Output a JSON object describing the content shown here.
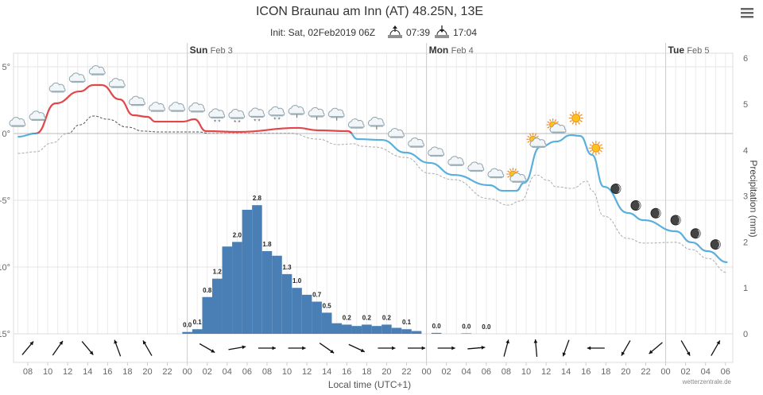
{
  "header": {
    "title": "ICON Braunau am Inn (AT) 48.25N, 13E",
    "init": "Init: Sat, 02Feb2019 06Z",
    "sunrise": "07:39",
    "sunset": "17:04",
    "menu_icon": "hamburger-menu-icon"
  },
  "days": [
    {
      "weekday": "Sun",
      "date": "Feb 3"
    },
    {
      "weekday": "Mon",
      "date": "Feb 4"
    },
    {
      "weekday": "Tue",
      "date": "Feb 5"
    }
  ],
  "credit": "wetterzentrale.de",
  "colors": {
    "temp_above": "#e0464a",
    "temp_below": "#5aafdc",
    "precip": "#4a7fb5",
    "dew_above": "#555555",
    "dew_below": "#aaaaaa"
  },
  "chart_data": {
    "type": "line+bar",
    "xlabel": "Local time (UTC+1)",
    "x_tick_labels": [
      "08",
      "10",
      "12",
      "14",
      "16",
      "18",
      "20",
      "22",
      "00",
      "02",
      "04",
      "06",
      "08",
      "10",
      "12",
      "14",
      "16",
      "18",
      "20",
      "22",
      "00",
      "02",
      "04",
      "06",
      "08",
      "10",
      "12",
      "14",
      "16",
      "18",
      "20",
      "22",
      "00",
      "02",
      "04",
      "06"
    ],
    "y_left": {
      "ticks": [
        "5°",
        "0°",
        "-5°",
        "-10°",
        "-15°"
      ],
      "range": [
        -15,
        6.4
      ]
    },
    "y_right": {
      "label": "Precipitation (mm)",
      "ticks": [
        "0",
        "1",
        "2",
        "3",
        "4",
        "5",
        "6"
      ],
      "range": [
        0,
        6
      ]
    },
    "grid": true,
    "temperature": [
      [
        "2019-02-02T07:00",
        -0.24
      ],
      [
        "2019-02-02T08:48",
        0.0
      ],
      [
        "2019-02-02T10:48",
        2.26
      ],
      [
        "2019-02-02T13:12",
        3.15
      ],
      [
        "2019-02-02T14:36",
        3.63
      ],
      [
        "2019-02-02T15:24",
        3.63
      ],
      [
        "2019-02-02T17:12",
        2.56
      ],
      [
        "2019-02-02T18:36",
        1.37
      ],
      [
        "2019-02-02T20:00",
        1.25
      ],
      [
        "2019-02-02T20:48",
        0.89
      ],
      [
        "2019-02-02T23:36",
        0.89
      ],
      [
        "2019-02-03T00:42",
        1.07
      ],
      [
        "2019-02-03T01:54",
        0.18
      ],
      [
        "2019-02-03T05:06",
        0.12
      ],
      [
        "2019-02-03T11:06",
        0.42
      ],
      [
        "2019-02-03T13:06",
        0.24
      ],
      [
        "2019-02-03T16:06",
        0.18
      ],
      [
        "2019-02-03T17:06",
        -0.42
      ],
      [
        "2019-02-03T19:30",
        -0.48
      ],
      [
        "2019-02-03T21:54",
        -1.43
      ],
      [
        "2019-02-04T00:18",
        -2.2
      ],
      [
        "2019-02-04T02:42",
        -3.1
      ],
      [
        "2019-02-04T06:18",
        -3.87
      ],
      [
        "2019-02-04T07:42",
        -4.29
      ],
      [
        "2019-02-04T09:00",
        -4.29
      ],
      [
        "2019-02-04T09:48",
        -3.69
      ],
      [
        "2019-02-04T11:24",
        -1.01
      ],
      [
        "2019-02-04T13:00",
        -0.6
      ],
      [
        "2019-02-04T14:30",
        -0.12
      ],
      [
        "2019-02-04T15:24",
        -0.18
      ],
      [
        "2019-02-04T16:36",
        -1.6
      ],
      [
        "2019-02-04T17:48",
        -3.99
      ],
      [
        "2019-02-04T20:12",
        -5.95
      ],
      [
        "2019-02-04T21:48",
        -6.49
      ],
      [
        "2019-02-05T01:00",
        -7.32
      ],
      [
        "2019-02-05T02:36",
        -8.15
      ],
      [
        "2019-02-05T04:12",
        -8.81
      ],
      [
        "2019-02-05T06:12",
        -9.64
      ]
    ],
    "dew_point": [
      [
        "2019-02-02T07:00",
        -1.49
      ],
      [
        "2019-02-02T08:48",
        -1.37
      ],
      [
        "2019-02-02T10:24",
        -0.71
      ],
      [
        "2019-02-02T12:00",
        0.0
      ],
      [
        "2019-02-02T13:12",
        0.65
      ],
      [
        "2019-02-02T14:36",
        1.31
      ],
      [
        "2019-02-02T16:00",
        1.07
      ],
      [
        "2019-02-02T18:00",
        0.48
      ],
      [
        "2019-02-02T19:36",
        0.18
      ],
      [
        "2019-02-02T21:12",
        0.12
      ],
      [
        "2019-02-03T01:06",
        0.12
      ],
      [
        "2019-02-03T02:18",
        0.0
      ],
      [
        "2019-02-03T10:18",
        0.0
      ],
      [
        "2019-02-03T13:06",
        -0.42
      ],
      [
        "2019-02-03T15:06",
        -0.83
      ],
      [
        "2019-02-03T16:42",
        -0.77
      ],
      [
        "2019-02-03T17:30",
        -0.95
      ],
      [
        "2019-02-03T18:42",
        -1.01
      ],
      [
        "2019-02-03T21:54",
        -1.79
      ],
      [
        "2019-02-04T00:18",
        -2.98
      ],
      [
        "2019-02-04T02:42",
        -3.45
      ],
      [
        "2019-02-04T06:18",
        -4.88
      ],
      [
        "2019-02-04T08:12",
        -5.36
      ],
      [
        "2019-02-04T09:24",
        -5.06
      ],
      [
        "2019-02-04T11:00",
        -3.1
      ],
      [
        "2019-02-04T12:12",
        -3.51
      ],
      [
        "2019-02-04T13:00",
        -3.99
      ],
      [
        "2019-02-04T14:36",
        -4.11
      ],
      [
        "2019-02-04T16:06",
        -3.57
      ],
      [
        "2019-02-04T16:36",
        -4.29
      ],
      [
        "2019-02-04T17:48",
        -6.19
      ],
      [
        "2019-02-04T20:12",
        -7.86
      ],
      [
        "2019-02-04T21:48",
        -8.21
      ],
      [
        "2019-02-05T01:00",
        -8.15
      ],
      [
        "2019-02-05T02:36",
        -8.69
      ],
      [
        "2019-02-05T04:12",
        -9.35
      ],
      [
        "2019-02-05T06:12",
        -10.42
      ]
    ],
    "precipitation": {
      "start": "2019-02-03T00:00",
      "hourly_mm": [
        0.04,
        0.1,
        0.8,
        1.2,
        1.9,
        2.0,
        2.7,
        2.8,
        1.8,
        1.7,
        1.3,
        1.0,
        0.85,
        0.7,
        0.46,
        0.23,
        0.2,
        0.17,
        0.2,
        0.17,
        0.2,
        0.13,
        0.1,
        0.06,
        0,
        0.02,
        0,
        0,
        0.01,
        0,
        0.0
      ],
      "labels": [
        [
          "2019-02-03T00:00",
          "0.0"
        ],
        [
          "2019-02-03T01:00",
          "0.1"
        ],
        [
          "2019-02-03T02:00",
          "0.8"
        ],
        [
          "2019-02-03T03:00",
          "1.2"
        ],
        [
          "2019-02-03T05:00",
          "2.0"
        ],
        [
          "2019-02-03T07:00",
          "2.8"
        ],
        [
          "2019-02-03T08:00",
          "1.8"
        ],
        [
          "2019-02-03T10:00",
          "1.3"
        ],
        [
          "2019-02-03T11:00",
          "1.0"
        ],
        [
          "2019-02-03T13:00",
          "0.7"
        ],
        [
          "2019-02-03T14:00",
          "0.5"
        ],
        [
          "2019-02-03T16:00",
          "0.2"
        ],
        [
          "2019-02-03T18:00",
          "0.2"
        ],
        [
          "2019-02-03T20:00",
          "0.2"
        ],
        [
          "2019-02-03T22:00",
          "0.1"
        ],
        [
          "2019-02-04T01:00",
          "0.0"
        ],
        [
          "2019-02-04T04:00",
          "0.0"
        ],
        [
          "2019-02-04T06:00",
          "0.0"
        ]
      ]
    },
    "weather_symbols": {
      "start": "2019-02-02T07:00",
      "step_hours": 2,
      "symbols": [
        "cloud",
        "cloud",
        "cloud",
        "cloud",
        "cloud",
        "cloud",
        "cloud",
        "cloud",
        "cloud",
        "cloud",
        "snow",
        "snow",
        "snow",
        "snow",
        "drizzle",
        "drizzle",
        "drizzle",
        "cloud",
        "drizzle",
        "cloud",
        "cloud",
        "cloud",
        "cloud",
        "cloud",
        "cloud",
        "sun-cloud",
        "sun-cloud",
        "sun-cloud",
        "sun",
        "sun",
        "moon",
        "moon",
        "moon",
        "moon",
        "moon",
        "moon"
      ]
    },
    "wind": {
      "start": "2019-02-02T08:00",
      "step_hours": 3,
      "heading_deg": [
        40,
        35,
        140,
        340,
        330,
        null,
        120,
        80,
        90,
        90,
        125,
        115,
        90,
        90,
        90,
        85,
        15,
        355,
        200,
        270,
        210,
        230,
        150,
        30
      ]
    }
  }
}
